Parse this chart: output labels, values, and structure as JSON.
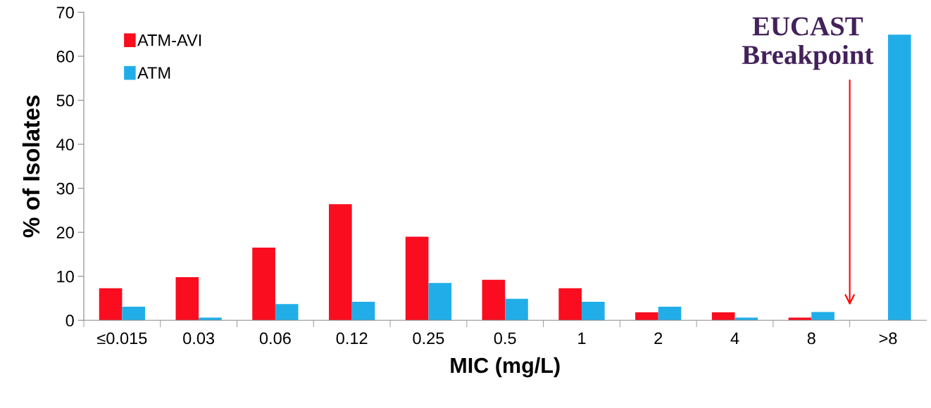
{
  "chart_data": {
    "type": "bar",
    "categories": [
      "≤0.015",
      "0.03",
      "0.06",
      "0.12",
      "0.25",
      "0.5",
      "1",
      "2",
      "4",
      "8",
      ">8"
    ],
    "series": [
      {
        "name": "ATM-AVI",
        "color": "#f90d1f",
        "values": [
          7.3,
          9.8,
          16.5,
          26.4,
          19.0,
          9.2,
          7.3,
          1.8,
          1.8,
          0.6,
          0
        ]
      },
      {
        "name": "ATM",
        "color": "#21aee8",
        "values": [
          3.1,
          0.6,
          3.7,
          4.2,
          8.5,
          4.9,
          4.2,
          3.1,
          0.6,
          1.9,
          64.9
        ]
      }
    ],
    "xlabel": "MIC (mg/L)",
    "ylabel": "% of Isolates",
    "ylim": [
      0,
      70
    ],
    "yticks": [
      0,
      10,
      20,
      30,
      40,
      50,
      60,
      70
    ],
    "annotations": [
      "EUCAST\nBreakpoint"
    ],
    "legend": "top left",
    "grid": false
  }
}
